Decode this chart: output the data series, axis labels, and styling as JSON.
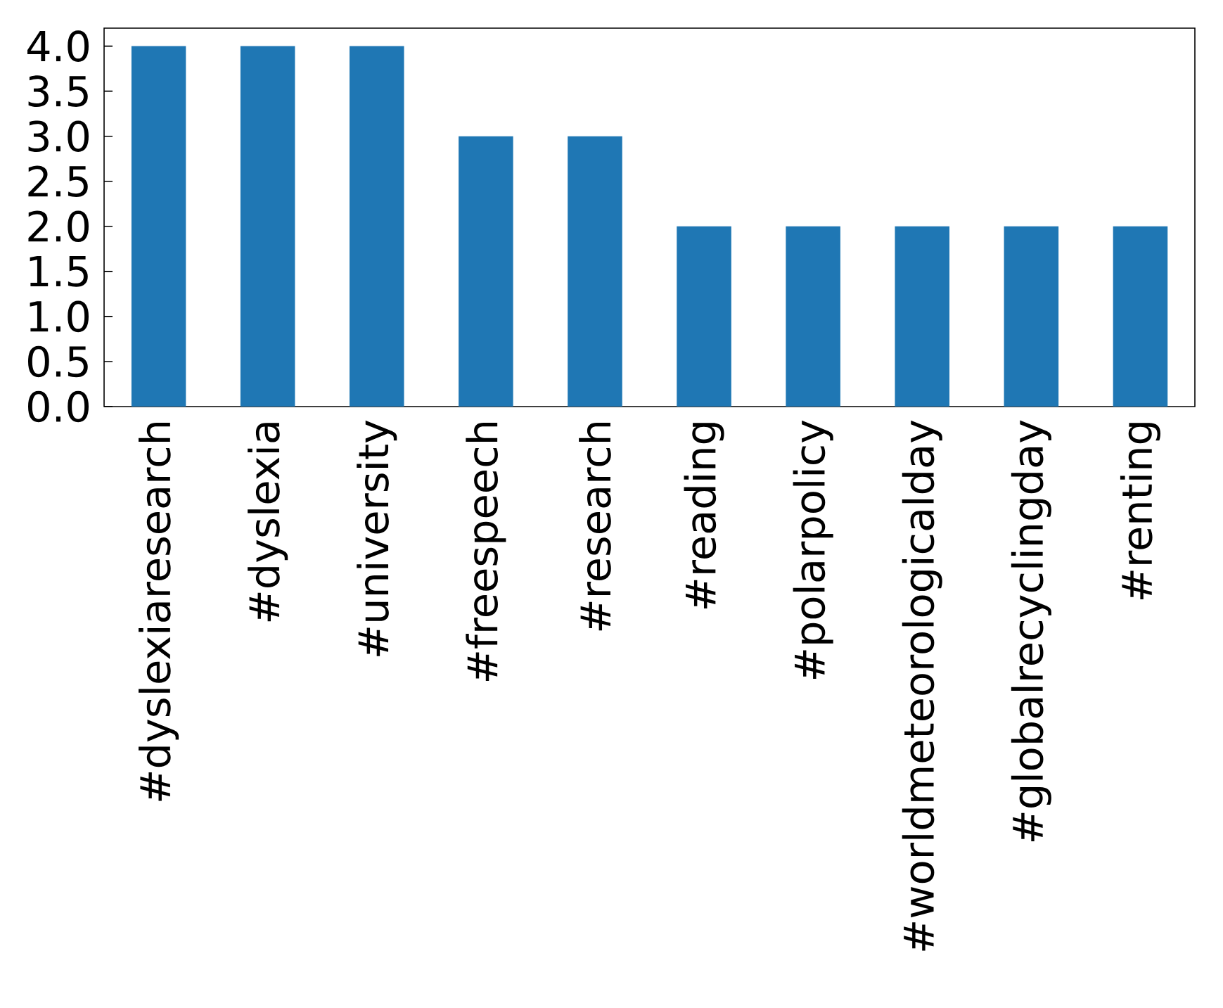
{
  "chart_data": {
    "type": "bar",
    "categories": [
      "#dyslexiaresearch",
      "#dyslexia",
      "#university",
      "#freespeech",
      "#research",
      "#reading",
      "#polarpolicy",
      "#worldmeteorologicalday",
      "#globalrecyclingday",
      "#renting"
    ],
    "values": [
      4,
      4,
      4,
      3,
      3,
      2,
      2,
      2,
      2,
      2
    ],
    "color": "#1f77b4",
    "ylim": [
      0,
      4.2
    ],
    "yticks": [
      {
        "value": 0,
        "label": "0.0"
      },
      0.5,
      {
        "value": 1,
        "label": "1.0"
      },
      1.5,
      {
        "value": 2,
        "label": "2.0"
      },
      2.5,
      {
        "value": 3,
        "label": "3.0"
      },
      3.5,
      {
        "value": 4,
        "label": "4.0"
      }
    ]
  }
}
